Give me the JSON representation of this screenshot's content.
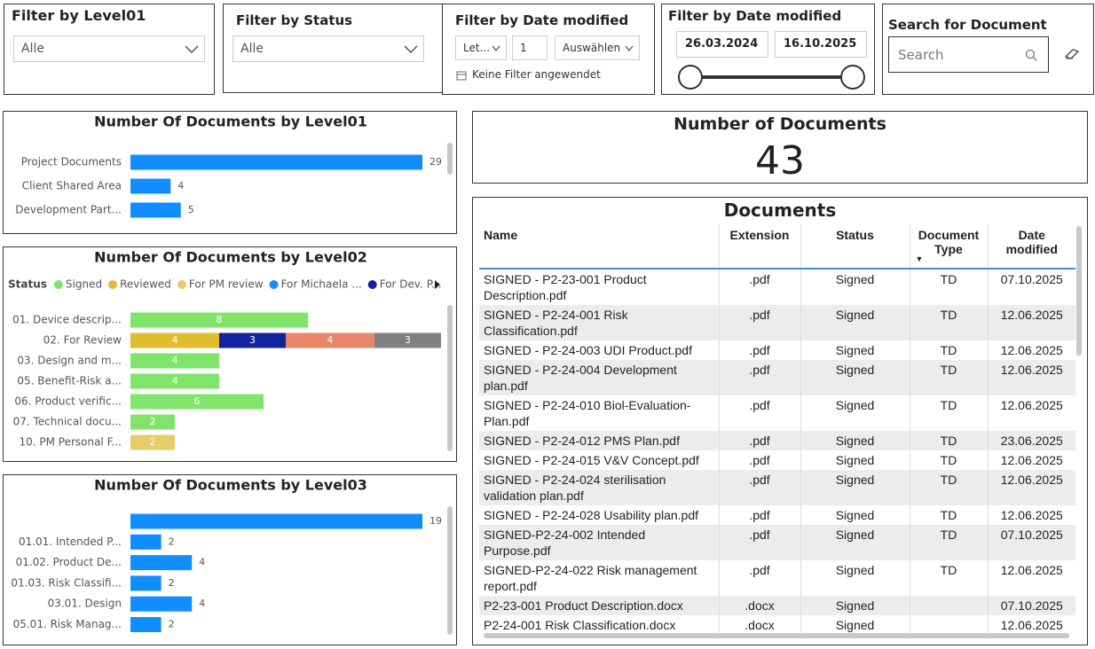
{
  "filters": [
    {
      "title": "Filter by Level01",
      "value": "Alle"
    },
    {
      "title": "Filter by Status",
      "value": "Alle"
    },
    {
      "title": "Filter by Date modified",
      "mode": "Let...",
      "count": 1,
      "unit": "Auswählen",
      "note": "Keine Filter angewendet"
    },
    {
      "title": "Filter by Date modified",
      "start": "26.03.2024",
      "end": "16.10.2025"
    },
    {
      "title": "Search for Document",
      "placeholder": "Search"
    }
  ],
  "chart_data": [
    {
      "type": "bar",
      "title": "Number Of Documents by Level01",
      "categories": [
        "Project Documents",
        "Client Shared Area",
        "Development Part..."
      ],
      "values": [
        29,
        4,
        5
      ],
      "color": "#118DFF"
    },
    {
      "type": "stacked_bar",
      "title": "Number Of Documents by Level02",
      "legend_title": "Status",
      "categories": [
        "01. Device descrip...",
        "02. For Review",
        "03. Design and m...",
        "05. Benefit-Risk a...",
        "06. Product verific...",
        "07. Technical docu...",
        "10. PM Personal F..."
      ],
      "series": [
        {
          "name": "Signed",
          "color": "#80E46B",
          "values": [
            8,
            null,
            4,
            4,
            6,
            2,
            null
          ]
        },
        {
          "name": "Reviewed",
          "color": "#E0BC2E",
          "values": [
            null,
            4,
            null,
            null,
            null,
            null,
            null
          ]
        },
        {
          "name": "For PM review",
          "color": "#E8CB6A",
          "values": [
            null,
            null,
            null,
            null,
            null,
            null,
            2
          ]
        },
        {
          "name": "For Michaela ...",
          "color": "#118DFF",
          "values": [
            null,
            null,
            null,
            null,
            null,
            null,
            null
          ]
        },
        {
          "name": "For Dev. P...",
          "color": "#12239E",
          "values": [
            null,
            3,
            null,
            null,
            null,
            null,
            null
          ]
        },
        {
          "name": null,
          "color": "#E8866A",
          "values": [
            null,
            4,
            null,
            null,
            null,
            null,
            null
          ]
        },
        {
          "name": null,
          "color": "#808080",
          "values": [
            null,
            3,
            null,
            null,
            null,
            null,
            null
          ]
        }
      ]
    },
    {
      "type": "bar",
      "title": "Number Of Documents by Level03",
      "categories": [
        null,
        "01.01. Intended P...",
        "01.02. Product De...",
        "01.03. Risk Classifi...",
        "03.01. Design",
        "05.01. Risk Manag..."
      ],
      "values": [
        19,
        2,
        4,
        2,
        4,
        2
      ],
      "color": "#118DFF"
    }
  ],
  "kpi": {
    "title": "Number of Documents",
    "value": 43
  },
  "table": {
    "title": "Documents",
    "columns": [
      "Name",
      "Extension",
      "Status",
      "Document Type",
      "Date modified"
    ],
    "rows": [
      [
        "SIGNED - P2-23-001 Product Description.pdf",
        ".pdf",
        "Signed",
        "TD",
        "07.10.2025"
      ],
      [
        "SIGNED - P2-24-001 Risk Classification.pdf",
        ".pdf",
        "Signed",
        "TD",
        "12.06.2025"
      ],
      [
        "SIGNED - P2-24-003 UDI Product.pdf",
        ".pdf",
        "Signed",
        "TD",
        "12.06.2025"
      ],
      [
        "SIGNED - P2-24-004 Development plan.pdf",
        ".pdf",
        "Signed",
        "TD",
        "12.06.2025"
      ],
      [
        "SIGNED - P2-24-010 Biol-Evaluation-Plan.pdf",
        ".pdf",
        "Signed",
        "TD",
        "12.06.2025"
      ],
      [
        "SIGNED - P2-24-012 PMS Plan.pdf",
        ".pdf",
        "Signed",
        "TD",
        "23.06.2025"
      ],
      [
        "SIGNED - P2-24-015 V&V Concept.pdf",
        ".pdf",
        "Signed",
        "TD",
        "12.06.2025"
      ],
      [
        "SIGNED - P2-24-024 sterilisation validation plan.pdf",
        ".pdf",
        "Signed",
        "TD",
        "12.06.2025"
      ],
      [
        "SIGNED - P2-24-028 Usability plan.pdf",
        ".pdf",
        "Signed",
        "TD",
        "12.06.2025"
      ],
      [
        "SIGNED-P2-24-002 Intended Purpose.pdf",
        ".pdf",
        "Signed",
        "TD",
        "07.10.2025"
      ],
      [
        "SIGNED-P2-24-022 Risk management report.pdf",
        ".pdf",
        "Signed",
        "TD",
        "12.06.2025"
      ],
      [
        "P2-23-001 Product Description.docx",
        ".docx",
        "Signed",
        null,
        "07.10.2025"
      ],
      [
        "P2-24-001 Risk Classification.docx",
        ".docx",
        "Signed",
        null,
        "12.06.2025"
      ]
    ]
  }
}
